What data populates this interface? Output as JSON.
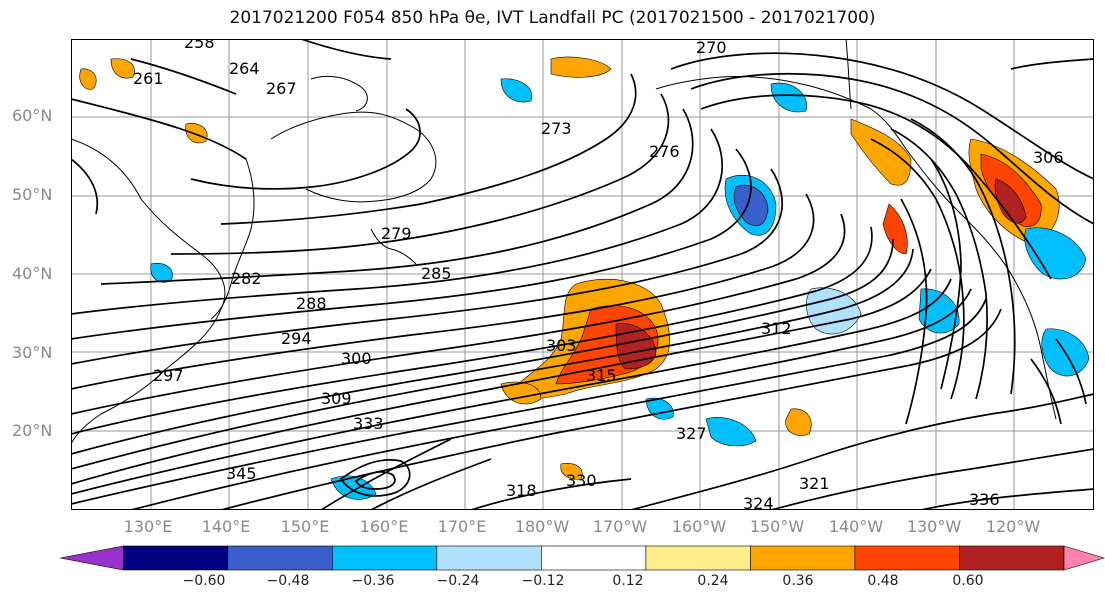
{
  "title": "2017021200 F054 850 hPa θe, IVT Landfall PC (2017021500 - 2017021700)",
  "map": {
    "lat_labels": [
      "60°N",
      "50°N",
      "40°N",
      "30°N",
      "20°N"
    ],
    "lon_labels": [
      "130°E",
      "140°E",
      "150°E",
      "160°E",
      "170°E",
      "180°W",
      "170°W",
      "160°W",
      "150°W",
      "140°W",
      "130°W",
      "120°W"
    ],
    "contour_labels": [
      "258",
      "264",
      "261",
      "267",
      "270",
      "273",
      "276",
      "279",
      "282",
      "285",
      "288",
      "294",
      "297",
      "300",
      "303",
      "306",
      "309",
      "312",
      "315",
      "318",
      "321",
      "324",
      "327",
      "330",
      "333",
      "336",
      "345"
    ]
  },
  "colorbar": {
    "ticks": [
      "−0.60",
      "−0.48",
      "−0.36",
      "−0.24",
      "−0.12",
      "0.12",
      "0.24",
      "0.36",
      "0.48",
      "0.60"
    ],
    "colors": [
      "#9932cc",
      "#000080",
      "#3a5fcd",
      "#00bfff",
      "#b0e2ff",
      "#ffffff",
      "#ffec8b",
      "#ffa500",
      "#ff4500",
      "#b22222",
      "#ff82ab"
    ]
  }
}
